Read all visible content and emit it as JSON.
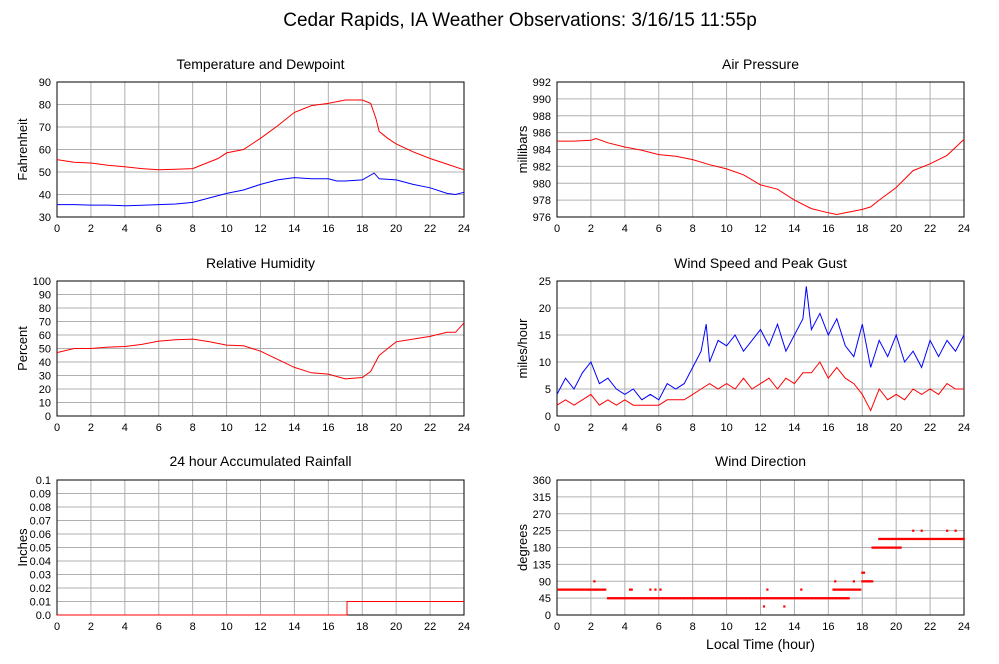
{
  "page": {
    "title": "Cedar Rapids, IA Weather Observations: 3/16/15 11:55p"
  },
  "colors": {
    "temp": "#ff0000",
    "dew": "#0000ff",
    "grid": "#b0b0b0",
    "axis": "#000000"
  },
  "chart_data": [
    {
      "id": "temp",
      "type": "line",
      "title": "Temperature and Dewpoint",
      "xlabel": "",
      "ylabel": "Fahrenheit",
      "xlim": [
        0,
        24
      ],
      "ylim": [
        30,
        90
      ],
      "xticks": [
        0,
        2,
        4,
        6,
        8,
        10,
        12,
        14,
        16,
        18,
        20,
        22,
        24
      ],
      "yticks": [
        30,
        40,
        50,
        60,
        70,
        80,
        90
      ],
      "series": [
        {
          "color": "#ff0000",
          "x": [
            0,
            1,
            2,
            3,
            4,
            5,
            6,
            7,
            8,
            9,
            9.5,
            10,
            11,
            12,
            13,
            14,
            15,
            16,
            17,
            18,
            18.5,
            18.8,
            19,
            19.5,
            20,
            21,
            22,
            23,
            24
          ],
          "y": [
            55.5,
            54.3,
            54,
            53,
            52.3,
            51.5,
            51,
            51.2,
            51.5,
            54.5,
            56,
            58.5,
            60,
            65,
            70.5,
            76.5,
            79.5,
            80.5,
            82,
            82,
            80.5,
            74,
            68,
            65,
            62.5,
            59,
            56,
            53.5,
            51
          ]
        },
        {
          "color": "#0000ff",
          "x": [
            0,
            1,
            2,
            3,
            4,
            5,
            6,
            7,
            8,
            9,
            10,
            11,
            12,
            13,
            14,
            15,
            16,
            16.5,
            17,
            18,
            18.7,
            19,
            20,
            21,
            22,
            23,
            23.5,
            24
          ],
          "y": [
            35.5,
            35.5,
            35.3,
            35.3,
            35,
            35.2,
            35.5,
            35.8,
            36.5,
            38.5,
            40.5,
            42,
            44.5,
            46.5,
            47.5,
            47,
            47,
            46,
            46,
            46.5,
            49.5,
            47,
            46.5,
            44.5,
            43,
            40.5,
            40,
            41
          ]
        }
      ]
    },
    {
      "id": "pressure",
      "type": "line",
      "title": "Air Pressure",
      "xlabel": "",
      "ylabel": "millibars",
      "xlim": [
        0,
        24
      ],
      "ylim": [
        976,
        992
      ],
      "xticks": [
        0,
        2,
        4,
        6,
        8,
        10,
        12,
        14,
        16,
        18,
        20,
        22,
        24
      ],
      "yticks": [
        976,
        978,
        980,
        982,
        984,
        986,
        988,
        990,
        992
      ],
      "series": [
        {
          "color": "#ff0000",
          "x": [
            0,
            1,
            2,
            2.3,
            3,
            4,
            5,
            6,
            7,
            8,
            9,
            10,
            11,
            12,
            13,
            14,
            15,
            16,
            16.5,
            17,
            17.5,
            18,
            18.5,
            19,
            20,
            21,
            22,
            23,
            24
          ],
          "y": [
            985,
            985,
            985.1,
            985.3,
            984.8,
            984.3,
            983.9,
            983.4,
            983.2,
            982.8,
            982.2,
            981.7,
            981,
            979.8,
            979.3,
            978,
            977,
            976.5,
            976.3,
            976.5,
            976.7,
            976.9,
            977.2,
            978,
            979.5,
            981.5,
            982.3,
            983.3,
            985.2
          ]
        }
      ]
    },
    {
      "id": "humidity",
      "type": "line",
      "title": "Relative Humidity",
      "xlabel": "",
      "ylabel": "Percent",
      "xlim": [
        0,
        24
      ],
      "ylim": [
        0,
        100
      ],
      "xticks": [
        0,
        2,
        4,
        6,
        8,
        10,
        12,
        14,
        16,
        18,
        20,
        22,
        24
      ],
      "yticks": [
        0,
        10,
        20,
        30,
        40,
        50,
        60,
        70,
        80,
        90,
        100
      ],
      "series": [
        {
          "color": "#ff0000",
          "x": [
            0,
            1,
            2,
            3,
            4,
            5,
            6,
            7,
            8,
            9,
            10,
            11,
            12,
            13,
            14,
            15,
            16,
            17,
            18,
            18.5,
            19,
            20,
            21,
            22,
            23,
            23.5,
            24
          ],
          "y": [
            47,
            50,
            50,
            51,
            51.5,
            53,
            55.5,
            56.5,
            57,
            55,
            52.5,
            52,
            48,
            42,
            36,
            32,
            31,
            27.5,
            28.5,
            33,
            45,
            55,
            57,
            59,
            62,
            62,
            69
          ]
        }
      ]
    },
    {
      "id": "wind",
      "type": "line",
      "title": "Wind Speed and Peak Gust",
      "xlabel": "",
      "ylabel": "miles/hour",
      "xlim": [
        0,
        24
      ],
      "ylim": [
        0,
        25
      ],
      "xticks": [
        0,
        2,
        4,
        6,
        8,
        10,
        12,
        14,
        16,
        18,
        20,
        22,
        24
      ],
      "yticks": [
        0,
        5,
        10,
        15,
        20,
        25
      ],
      "series": [
        {
          "color": "#0000ff",
          "x": [
            0,
            0.5,
            1,
            1.5,
            2,
            2.5,
            3,
            3.5,
            4,
            4.5,
            5,
            5.5,
            6,
            6.5,
            7,
            7.5,
            8,
            8.5,
            8.8,
            9,
            9.5,
            10,
            10.5,
            11,
            11.5,
            12,
            12.5,
            13,
            13.5,
            14,
            14.5,
            14.7,
            15,
            15.5,
            16,
            16.5,
            17,
            17.5,
            18,
            18.5,
            19,
            19.5,
            20,
            20.5,
            21,
            21.5,
            22,
            22.5,
            23,
            23.5,
            24
          ],
          "y": [
            4,
            7,
            5,
            8,
            10,
            6,
            7,
            5,
            4,
            5,
            3,
            4,
            3,
            6,
            5,
            6,
            9,
            12,
            17,
            10,
            14,
            13,
            15,
            12,
            14,
            16,
            13,
            17,
            12,
            15,
            18,
            24,
            16,
            19,
            15,
            18,
            13,
            11,
            17,
            9,
            14,
            11,
            15,
            10,
            12,
            9,
            14,
            11,
            14,
            12,
            15
          ]
        },
        {
          "color": "#ff0000",
          "x": [
            0,
            0.5,
            1,
            1.5,
            2,
            2.5,
            3,
            3.5,
            4,
            4.5,
            5,
            5.5,
            6,
            6.5,
            7,
            7.5,
            8,
            8.5,
            9,
            9.5,
            10,
            10.5,
            11,
            11.5,
            12,
            12.5,
            13,
            13.5,
            14,
            14.5,
            15,
            15.5,
            16,
            16.5,
            17,
            17.5,
            18,
            18.5,
            19,
            19.5,
            20,
            20.5,
            21,
            21.5,
            22,
            22.5,
            23,
            23.5,
            24
          ],
          "y": [
            2,
            3,
            2,
            3,
            4,
            2,
            3,
            2,
            3,
            2,
            2,
            2,
            2,
            3,
            3,
            3,
            4,
            5,
            6,
            5,
            6,
            5,
            7,
            5,
            6,
            7,
            5,
            7,
            6,
            8,
            8,
            10,
            7,
            9,
            7,
            6,
            4,
            1,
            5,
            3,
            4,
            3,
            5,
            4,
            5,
            4,
            6,
            5,
            5
          ]
        }
      ]
    },
    {
      "id": "rain",
      "type": "line",
      "title": "24 hour Accumulated Rainfall",
      "xlabel": "",
      "ylabel": "Inches",
      "xlim": [
        0,
        24
      ],
      "ylim": [
        0,
        0.1
      ],
      "xticks": [
        0,
        2,
        4,
        6,
        8,
        10,
        12,
        14,
        16,
        18,
        20,
        22,
        24
      ],
      "yticks": [
        "0.0",
        "0.01",
        "0.02",
        "0.03",
        "0.04",
        "0.05",
        "0.06",
        "0.07",
        "0.08",
        "0.09",
        "0.1"
      ],
      "series": [
        {
          "color": "#ff0000",
          "x": [
            0,
            17.1,
            17.1,
            24
          ],
          "y": [
            0,
            0,
            0.01,
            0.01
          ]
        }
      ]
    },
    {
      "id": "winddir",
      "type": "scatter",
      "title": "Wind Direction",
      "xlabel": "Local Time (hour)",
      "ylabel": "degrees",
      "xlim": [
        0,
        24
      ],
      "ylim": [
        0,
        360
      ],
      "xticks": [
        0,
        2,
        4,
        6,
        8,
        10,
        12,
        14,
        16,
        18,
        20,
        22,
        24
      ],
      "yticks": [
        0,
        45,
        90,
        135,
        180,
        225,
        270,
        315,
        360
      ],
      "series": [
        {
          "color": "#ff0000",
          "segments": [
            {
              "from": 0.1,
              "to": 2.9,
              "y": 68
            },
            {
              "from": 3.0,
              "to": 17.2,
              "y": 45
            },
            {
              "from": 16.3,
              "to": 17.9,
              "y": 68
            },
            {
              "from": 18.0,
              "to": 18.6,
              "y": 90
            },
            {
              "from": 18.6,
              "to": 20.3,
              "y": 180
            },
            {
              "from": 19.0,
              "to": 24.0,
              "y": 203
            }
          ],
          "x": [
            2.2,
            2.3,
            4.3,
            4.4,
            5.5,
            5.8,
            6.1,
            12.2,
            12.4,
            13.4,
            14.4,
            16.4,
            17.5,
            18.0,
            18.1,
            21.0,
            21.5,
            23.0,
            23.5,
            8.1,
            1.9
          ],
          "y": [
            90,
            68,
            68,
            68,
            68,
            68,
            68,
            23,
            68,
            23,
            68,
            90,
            90,
            113,
            113,
            225,
            225,
            225,
            225,
            45,
            68
          ]
        }
      ]
    }
  ]
}
